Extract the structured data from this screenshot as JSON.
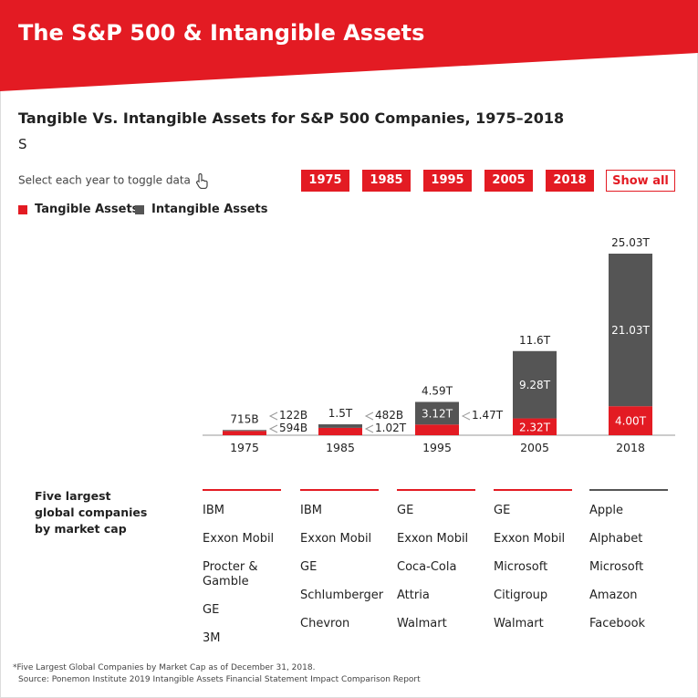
{
  "header": {
    "title": "The S&P 500 & Intangible Assets"
  },
  "chart_data": {
    "type": "stacked_bar",
    "title": "Tangible Vs. Intangible Assets for S&P 500 Companies, 1975–2018",
    "subtitle": "S",
    "categories": [
      "1975",
      "1985",
      "1995",
      "2005",
      "2018"
    ],
    "series": [
      {
        "name": "Tangible Assets",
        "color": "#e31b23",
        "values": [
          0.594,
          1.02,
          1.47,
          2.32,
          4.0
        ],
        "value_labels": [
          "594B",
          "1.02T",
          "1.47T",
          "2.32T",
          "4.00T"
        ]
      },
      {
        "name": "Intangible Assets",
        "color": "#555555",
        "values": [
          0.122,
          0.482,
          3.12,
          9.28,
          21.03
        ],
        "value_labels": [
          "122B",
          "482B",
          "3.12T",
          "9.28T",
          "21.03T"
        ]
      }
    ],
    "totals": {
      "values": [
        0.715,
        1.5,
        4.59,
        11.6,
        25.03
      ],
      "value_labels": [
        "715B",
        "1.5T",
        "4.59T",
        "11.6T",
        "25.03T"
      ]
    }
  },
  "controls": {
    "instruction": "Select each year to toggle data",
    "buttons": [
      "1975",
      "1985",
      "1995",
      "2005",
      "2018",
      "Show all"
    ]
  },
  "companies": {
    "heading": "Five largest global companies by market cap",
    "columns": [
      [
        "IBM",
        "Exxon Mobil",
        "Procter & Gamble",
        "GE",
        "3M"
      ],
      [
        "IBM",
        "Exxon Mobil",
        "GE",
        "Schlumberger",
        "Chevron"
      ],
      [
        "GE",
        "Exxon Mobil",
        "Coca-Cola",
        "Attria",
        "Walmart"
      ],
      [
        "GE",
        "Exxon Mobil",
        "Microsoft",
        "Citigroup",
        "Walmart"
      ],
      [
        "Apple",
        "Alphabet",
        "Microsoft",
        "Amazon",
        "Facebook"
      ]
    ]
  },
  "footnotes": [
    "*Five Largest Global Companies by Market Cap as of December 31, 2018.",
    "Source: Ponemon Institute 2019 Intangible Assets Financial Statement Impact Comparison Report"
  ]
}
